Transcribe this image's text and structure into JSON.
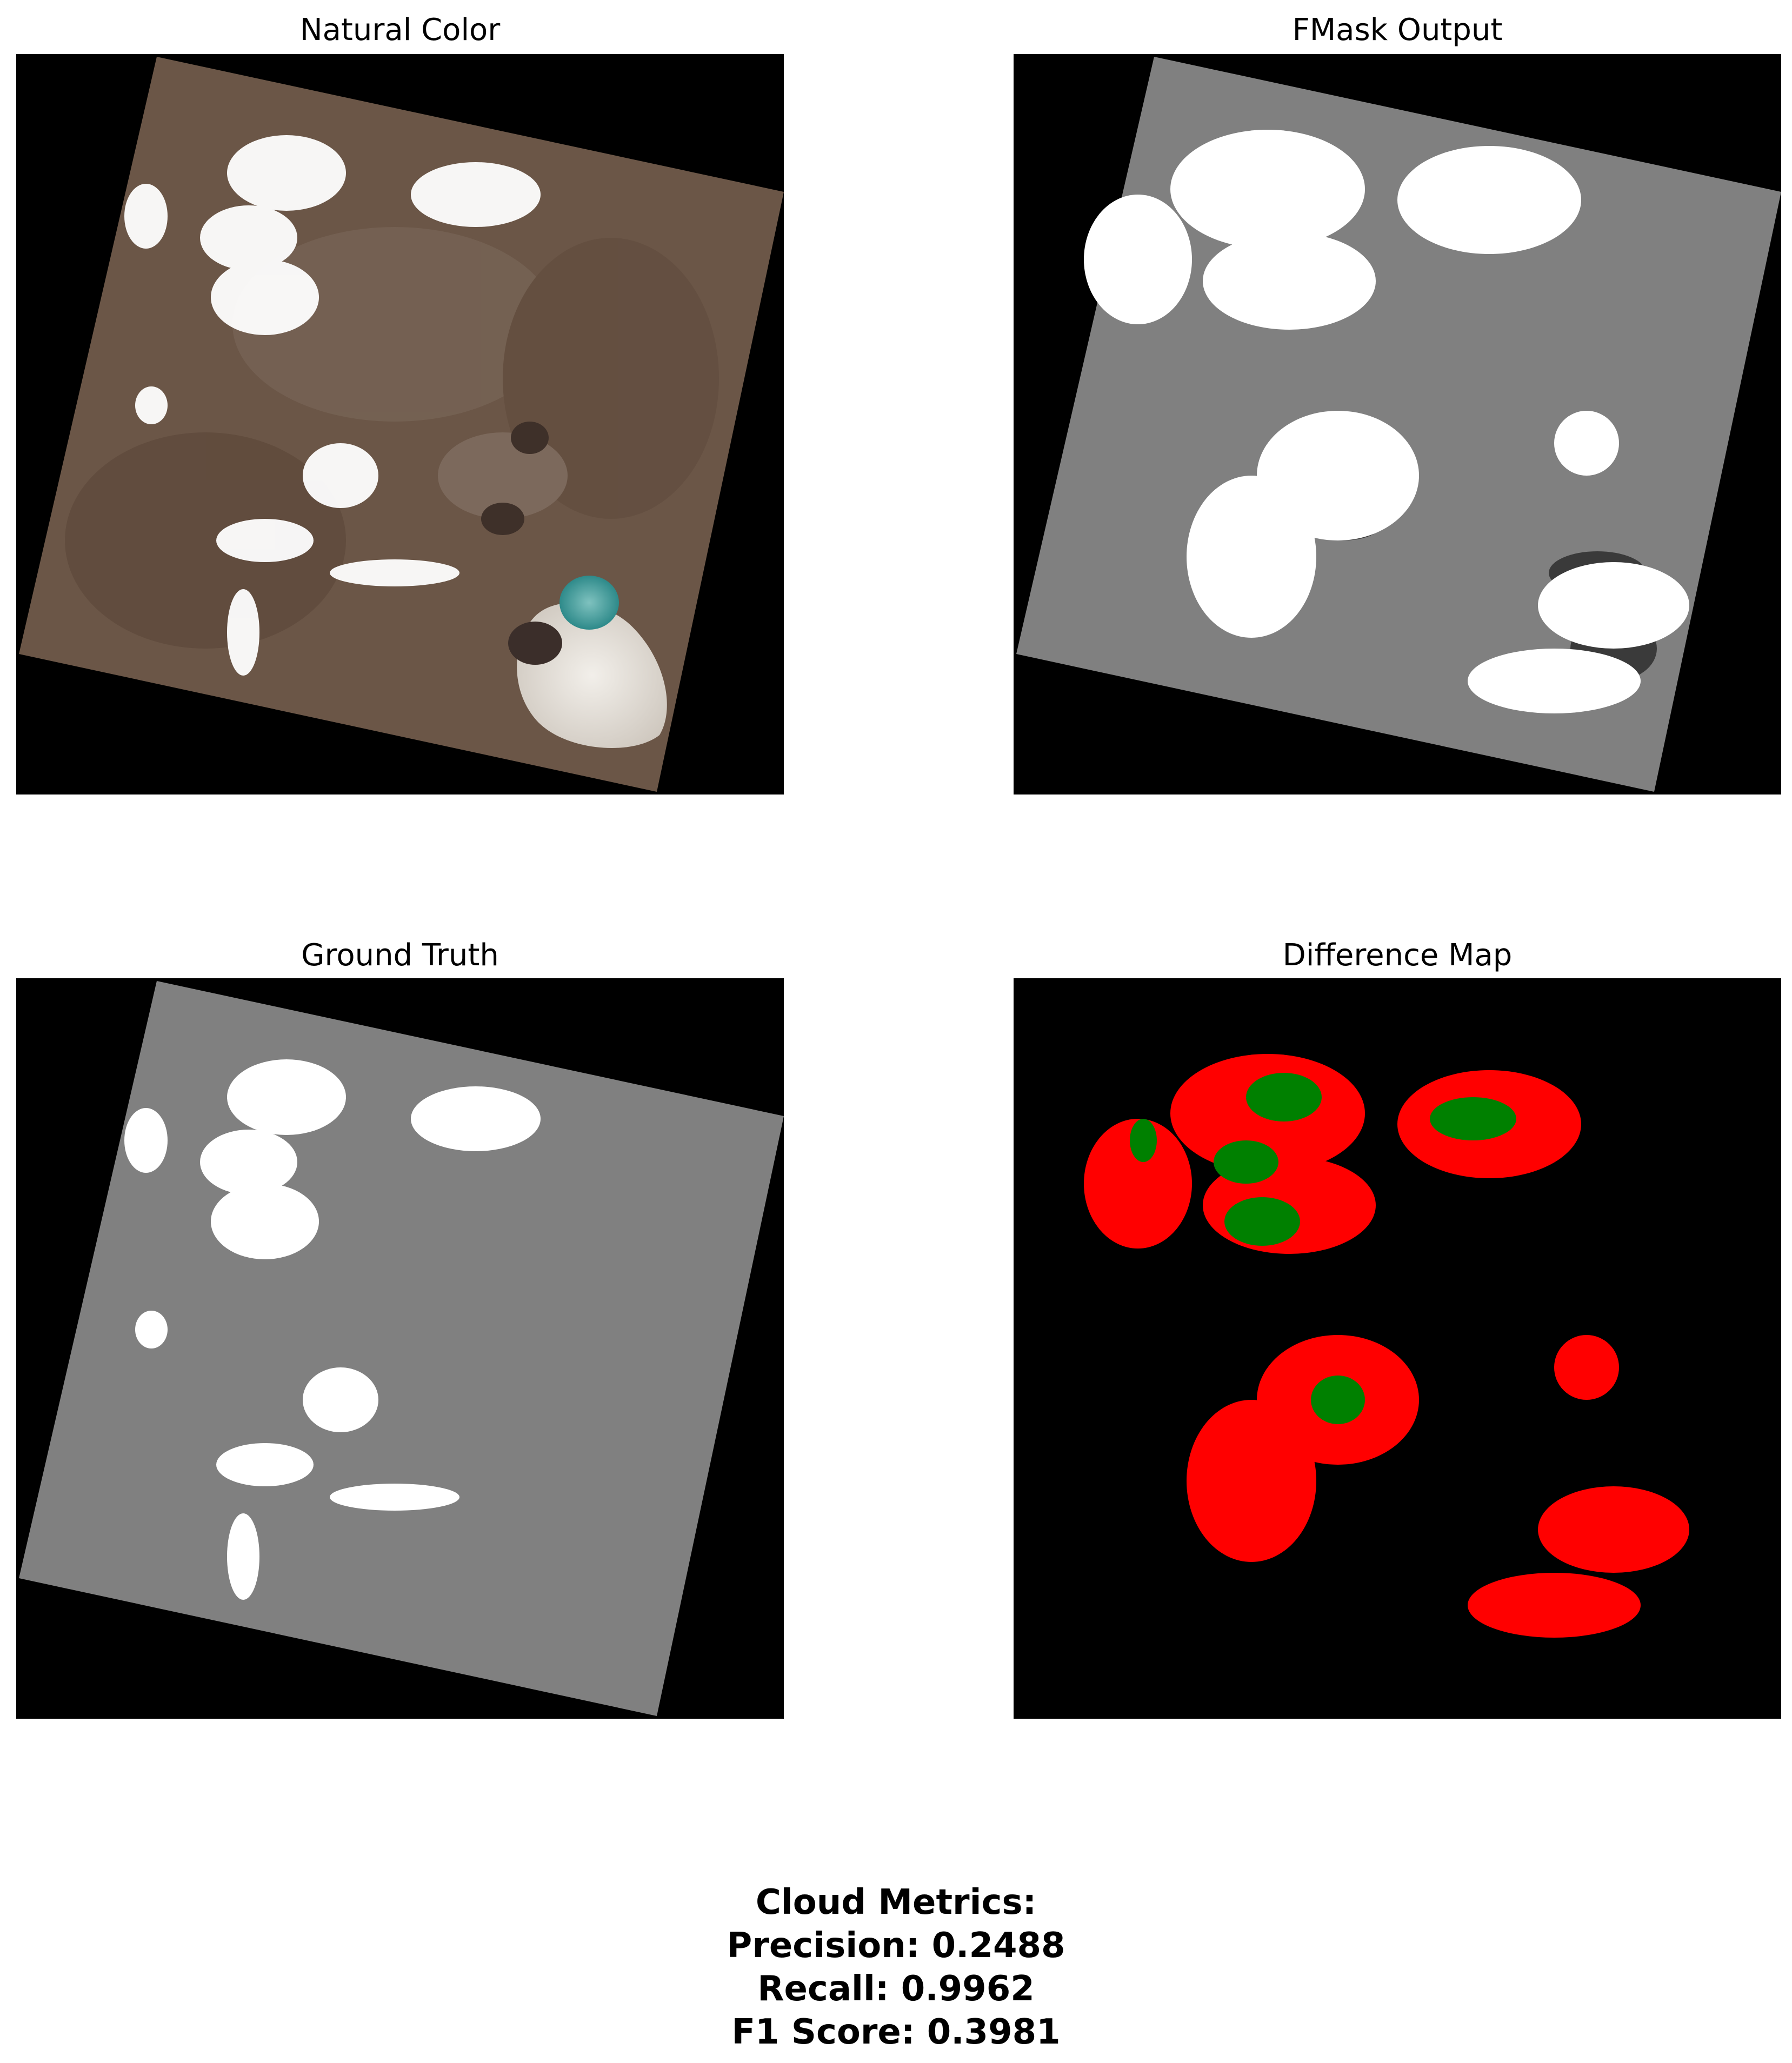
{
  "panels": [
    {
      "id": "natural",
      "title": "Natural Color"
    },
    {
      "id": "fmask",
      "title": "FMask Output"
    },
    {
      "id": "truth",
      "title": "Ground Truth"
    },
    {
      "id": "diff",
      "title": "Difference Map"
    }
  ],
  "metrics": {
    "heading": "Cloud Metrics:",
    "precision": "Precision: 0.2488",
    "recall": "Recall: 0.9962",
    "f1": "F1 Score: 0.3981"
  },
  "colors": {
    "background": "#000000",
    "land": "#6b5647",
    "mask_gray": "#808080",
    "cloud_white": "#ffffff",
    "shadow": "#3a3a3a",
    "false_positive_red": "#ff0000",
    "true_positive_green": "#008000"
  }
}
